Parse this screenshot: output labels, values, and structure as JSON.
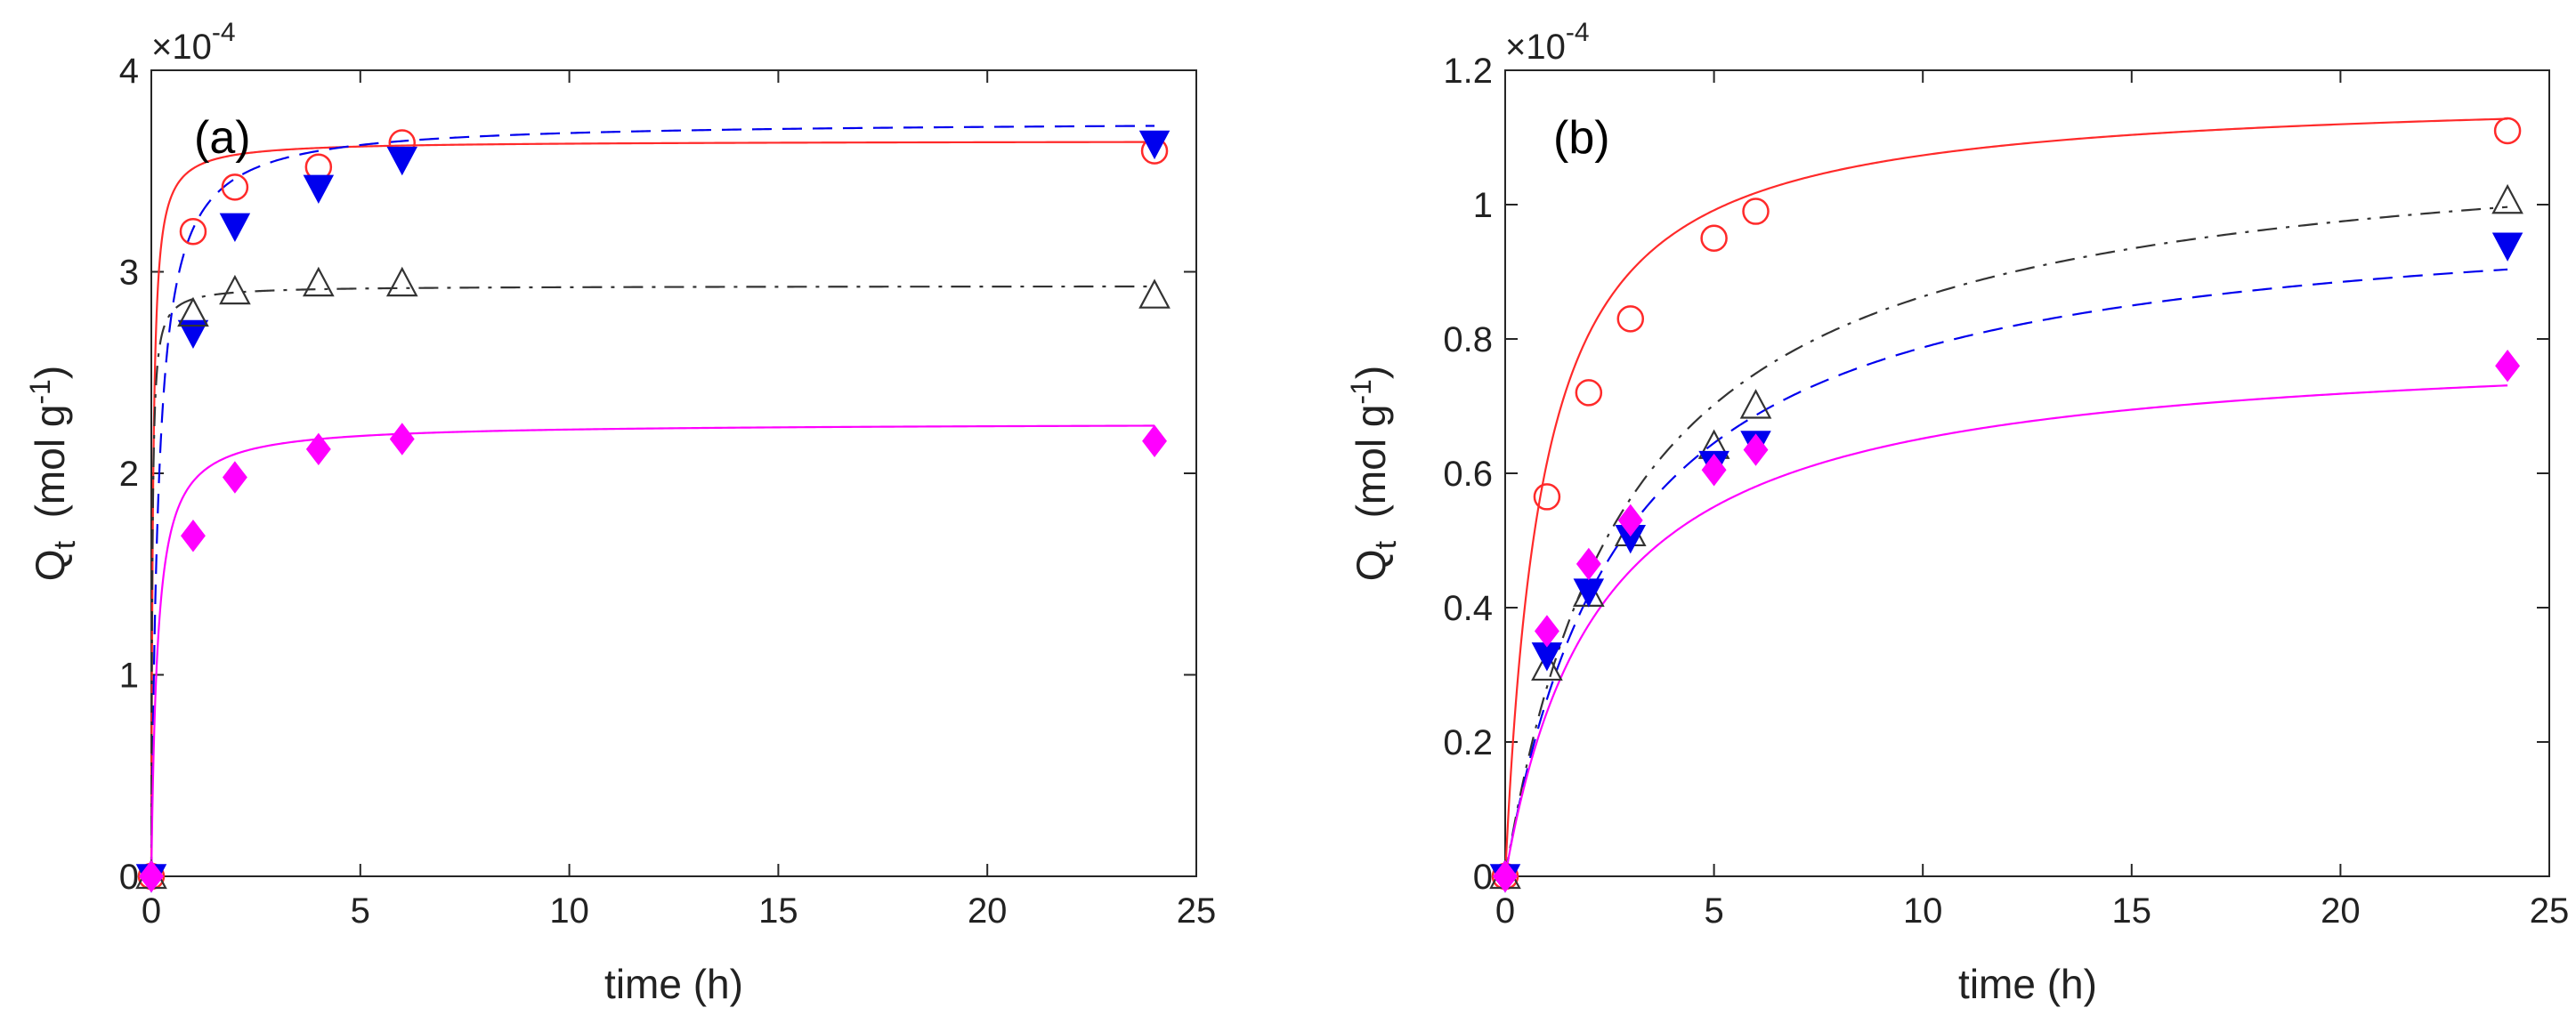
{
  "chart_data": [
    {
      "type": "scatter",
      "panel_label": "(a)",
      "xlabel": "time  (h)",
      "ylabel": "Q",
      "ylabel_sub": "t",
      "ylabel_units": "(mol g",
      "ylabel_units_sup": "-1",
      "ylabel_units_close": ")",
      "exponent_prefix": "×10",
      "exponent_power": "-4",
      "xlim": [
        0,
        25
      ],
      "ylim": [
        0,
        4
      ],
      "xticks": [
        0,
        5,
        10,
        15,
        20,
        25
      ],
      "xtick_labels": [
        "0",
        "5",
        "10",
        "15",
        "20",
        "25"
      ],
      "yticks": [
        0,
        1,
        2,
        3,
        4
      ],
      "ytick_labels": [
        "0",
        "1",
        "2",
        "3",
        "4"
      ],
      "series": [
        {
          "name": "red circles",
          "marker": "circle-open",
          "color": "#ff2a2a",
          "line_style": "solid",
          "points": [
            [
              0,
              0
            ],
            [
              1,
              3.2
            ],
            [
              2,
              3.42
            ],
            [
              4,
              3.52
            ],
            [
              6,
              3.64
            ],
            [
              24,
              3.6
            ]
          ],
          "fit": {
            "qe": 3.65,
            "k": 7.0
          }
        },
        {
          "name": "blue triangles",
          "marker": "triangle-down-filled",
          "color": "#0000ee",
          "line_style": "dashed",
          "points": [
            [
              0,
              0
            ],
            [
              1,
              2.7
            ],
            [
              2,
              3.23
            ],
            [
              4,
              3.42
            ],
            [
              6,
              3.56
            ],
            [
              24,
              3.64
            ]
          ],
          "fit": {
            "qe": 3.75,
            "k": 1.6
          }
        },
        {
          "name": "black triangles",
          "marker": "triangle-up-open",
          "color": "#333333",
          "line_style": "dashdot",
          "points": [
            [
              0,
              0
            ],
            [
              1,
              2.79
            ],
            [
              2,
              2.9
            ],
            [
              4,
              2.94
            ],
            [
              6,
              2.94
            ],
            [
              24,
              2.88
            ]
          ],
          "fit": {
            "qe": 2.93,
            "k": 15.0
          }
        },
        {
          "name": "magenta diamonds",
          "marker": "diamond-filled",
          "color": "#ff00ff",
          "line_style": "solid",
          "points": [
            [
              0,
              0
            ],
            [
              1,
              1.69
            ],
            [
              2,
              1.98
            ],
            [
              4,
              2.12
            ],
            [
              6,
              2.17
            ],
            [
              24,
              2.16
            ]
          ],
          "fit": {
            "qe": 2.25,
            "k": 3.0
          }
        }
      ]
    },
    {
      "type": "scatter",
      "panel_label": "(b)",
      "xlabel": "time  (h)",
      "ylabel": "Q",
      "ylabel_sub": "t",
      "ylabel_units": "(mol g",
      "ylabel_units_sup": "-1",
      "ylabel_units_close": ")",
      "exponent_prefix": "×10",
      "exponent_power": "-4",
      "xlim": [
        0,
        25
      ],
      "ylim": [
        0,
        1.2
      ],
      "xticks": [
        0,
        5,
        10,
        15,
        20,
        25
      ],
      "xtick_labels": [
        "0",
        "5",
        "10",
        "15",
        "20",
        "25"
      ],
      "yticks": [
        0,
        0.2,
        0.4,
        0.6,
        0.8,
        1,
        1.2
      ],
      "ytick_labels": [
        "0",
        "0.2",
        "0.4",
        "0.6",
        "0.8",
        "1",
        "1.2"
      ],
      "series": [
        {
          "name": "red circles",
          "marker": "circle-open",
          "color": "#ff2a2a",
          "line_style": "solid",
          "points": [
            [
              0,
              0
            ],
            [
              1,
              0.565
            ],
            [
              2,
              0.72
            ],
            [
              3,
              0.83
            ],
            [
              5,
              0.95
            ],
            [
              6,
              0.99
            ],
            [
              24,
              1.11
            ]
          ],
          "fit": {
            "qe": 1.17,
            "k": 0.95
          }
        },
        {
          "name": "black triangles",
          "marker": "triangle-up-open",
          "color": "#333333",
          "line_style": "dashdot",
          "points": [
            [
              0,
              0
            ],
            [
              1,
              0.31
            ],
            [
              2,
              0.42
            ],
            [
              3,
              0.51
            ],
            [
              5,
              0.64
            ],
            [
              6,
              0.7
            ],
            [
              24,
              1.005
            ]
          ],
          "fit": {
            "qe": 1.12,
            "k": 0.3
          }
        },
        {
          "name": "blue triangles",
          "marker": "triangle-down-filled",
          "color": "#0000ee",
          "line_style": "dashed",
          "points": [
            [
              0,
              0
            ],
            [
              1,
              0.33
            ],
            [
              2,
              0.425
            ],
            [
              3,
              0.505
            ],
            [
              5,
              0.615
            ],
            [
              6,
              0.645
            ],
            [
              24,
              0.94
            ]
          ],
          "fit": {
            "qe": 1.01,
            "k": 0.35
          }
        },
        {
          "name": "magenta diamonds",
          "marker": "diamond-filled",
          "color": "#ff00ff",
          "line_style": "solid",
          "points": [
            [
              0,
              0
            ],
            [
              1,
              0.365
            ],
            [
              2,
              0.465
            ],
            [
              3,
              0.53
            ],
            [
              5,
              0.605
            ],
            [
              6,
              0.635
            ],
            [
              24,
              0.76
            ]
          ],
          "fit": {
            "qe": 0.8,
            "k": 0.55
          }
        }
      ]
    }
  ]
}
